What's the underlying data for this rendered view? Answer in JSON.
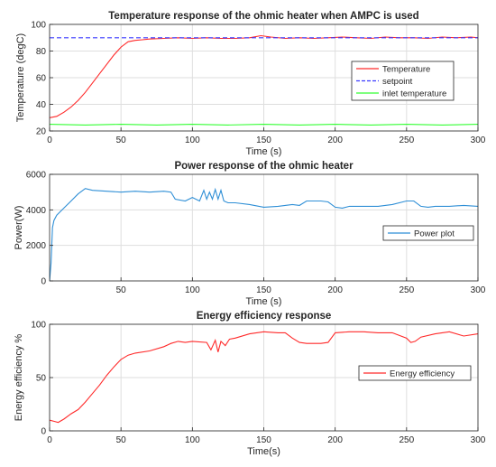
{
  "chart_data": [
    {
      "type": "line",
      "title": "Temperature response of the ohmic heater when AMPC is used",
      "xlabel": "Time (s)",
      "ylabel": "Temperature (degC)",
      "xlim": [
        0,
        300
      ],
      "ylim": [
        20,
        100
      ],
      "xticks": [
        0,
        50,
        100,
        150,
        200,
        250,
        300
      ],
      "yticks": [
        20,
        40,
        60,
        80,
        100
      ],
      "grid": true,
      "legend": "right",
      "series": [
        {
          "name": "Temperature",
          "color": "#ff2a2a",
          "dash": "solid",
          "x": [
            0,
            5,
            10,
            15,
            20,
            25,
            30,
            35,
            40,
            45,
            50,
            55,
            60,
            65,
            70,
            80,
            90,
            100,
            110,
            120,
            130,
            140,
            148,
            155,
            165,
            175,
            185,
            195,
            205,
            215,
            225,
            235,
            245,
            255,
            265,
            275,
            285,
            295,
            300
          ],
          "y": [
            30,
            31,
            34,
            38,
            43,
            49,
            56,
            63,
            70,
            77,
            83,
            87,
            88,
            88.5,
            89,
            89.5,
            90,
            89.5,
            90,
            89.5,
            89.5,
            90,
            91.5,
            90.5,
            89.5,
            90,
            89.5,
            90,
            90.5,
            90,
            89.5,
            90.5,
            90,
            90,
            89.5,
            90.5,
            90,
            90.5,
            90
          ]
        },
        {
          "name": "setpoint",
          "color": "#3a3aff",
          "dash": "dashed",
          "x": [
            0,
            300
          ],
          "y": [
            90,
            90
          ]
        },
        {
          "name": "inlet temperature",
          "color": "#33ff33",
          "dash": "solid",
          "x": [
            0,
            25,
            50,
            75,
            100,
            125,
            150,
            175,
            200,
            225,
            250,
            275,
            300
          ],
          "y": [
            25,
            24.5,
            25,
            24.5,
            25,
            24.5,
            25,
            24.5,
            25,
            24.5,
            25,
            24.5,
            25
          ]
        }
      ]
    },
    {
      "type": "line",
      "title": "Power response of the ohmic heater",
      "xlabel": "Time (s)",
      "ylabel": "Power(W)",
      "xlim": [
        0,
        300
      ],
      "ylim": [
        0,
        6000
      ],
      "xticks": [
        50,
        100,
        150,
        200,
        250,
        300
      ],
      "yticks": [
        0,
        2000,
        4000,
        6000
      ],
      "grid": true,
      "legend": "right",
      "series": [
        {
          "name": "Power plot",
          "color": "#2f8fd6",
          "dash": "solid",
          "x": [
            0,
            1,
            2,
            3,
            5,
            10,
            15,
            20,
            25,
            30,
            40,
            50,
            60,
            70,
            80,
            85,
            88,
            95,
            100,
            105,
            108,
            110,
            112,
            114,
            116,
            118,
            120,
            122,
            125,
            130,
            140,
            150,
            160,
            170,
            175,
            180,
            190,
            195,
            200,
            205,
            210,
            220,
            230,
            240,
            250,
            255,
            260,
            265,
            270,
            280,
            290,
            300
          ],
          "y": [
            0,
            1000,
            3000,
            3400,
            3700,
            4100,
            4500,
            4900,
            5200,
            5100,
            5050,
            5000,
            5050,
            5000,
            5050,
            5000,
            4600,
            4500,
            4700,
            4500,
            5100,
            4600,
            5000,
            4600,
            5150,
            4600,
            5100,
            4500,
            4400,
            4400,
            4300,
            4150,
            4200,
            4300,
            4250,
            4500,
            4500,
            4450,
            4150,
            4100,
            4200,
            4200,
            4200,
            4300,
            4500,
            4500,
            4200,
            4150,
            4200,
            4200,
            4250,
            4200
          ]
        }
      ]
    },
    {
      "type": "line",
      "title": "Energy efficiency response",
      "xlabel": "Time(s)",
      "ylabel": "Energy efficiency %",
      "xlim": [
        0,
        300
      ],
      "ylim": [
        0,
        100
      ],
      "xticks": [
        0,
        50,
        100,
        150,
        200,
        250,
        300
      ],
      "yticks": [
        0,
        50,
        100
      ],
      "grid": true,
      "legend": "right",
      "series": [
        {
          "name": "Energy efficiency",
          "color": "#ff2a2a",
          "dash": "solid",
          "x": [
            0,
            3,
            6,
            10,
            15,
            20,
            25,
            30,
            35,
            40,
            45,
            50,
            55,
            60,
            70,
            80,
            85,
            90,
            95,
            100,
            110,
            113,
            116,
            118,
            120,
            123,
            126,
            130,
            140,
            150,
            160,
            165,
            170,
            175,
            180,
            190,
            195,
            200,
            210,
            220,
            230,
            240,
            250,
            253,
            256,
            260,
            270,
            280,
            290,
            300
          ],
          "y": [
            10,
            9,
            8,
            11,
            16,
            20,
            27,
            35,
            43,
            52,
            60,
            67,
            71,
            73,
            75,
            79,
            82,
            84,
            83,
            84,
            83,
            76,
            85,
            74,
            84,
            80,
            86,
            87,
            91,
            93,
            92,
            92,
            87,
            83,
            82,
            82,
            83,
            92,
            93,
            93,
            92,
            92,
            87,
            83,
            84,
            88,
            91,
            93,
            89,
            91
          ]
        }
      ]
    }
  ]
}
